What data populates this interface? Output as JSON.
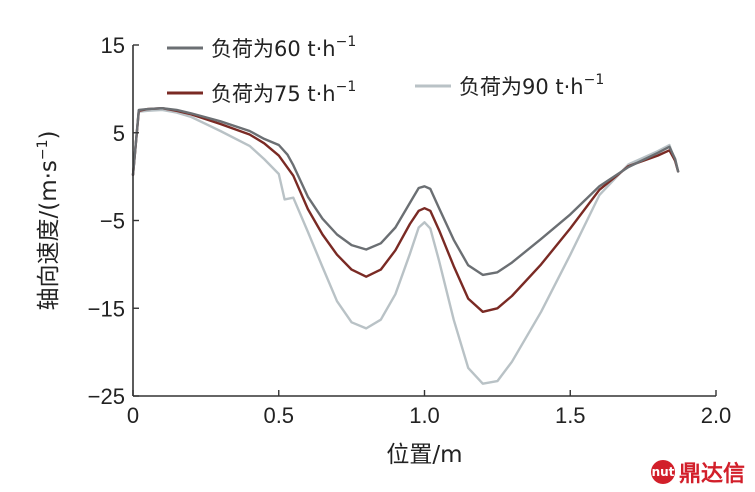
{
  "chart_data": {
    "type": "line",
    "xlabel": "位置/m",
    "ylabel": "轴向速度/(m·s",
    "ylabel_sup": "−1",
    "ylabel_close": ")",
    "xlim": [
      0,
      2.0
    ],
    "ylim": [
      -25,
      15
    ],
    "x_ticks": [
      0,
      0.5,
      1.0,
      1.5,
      2.0
    ],
    "x_tick_labels": [
      "0",
      "0.5",
      "1.0",
      "1.5",
      "2.0"
    ],
    "y_ticks": [
      15,
      5,
      -5,
      -15,
      -25
    ],
    "y_tick_labels": [
      "15",
      "5",
      "−5",
      "−15",
      "−25"
    ],
    "grid": false,
    "legend": "top",
    "series": [
      {
        "name": "负荷为60 t·h",
        "name_sup": "−1",
        "color": "#6b6f73",
        "points": [
          [
            0,
            0.2
          ],
          [
            0.02,
            7.6
          ],
          [
            0.05,
            7.7
          ],
          [
            0.1,
            7.8
          ],
          [
            0.15,
            7.6
          ],
          [
            0.2,
            7.2
          ],
          [
            0.3,
            6.3
          ],
          [
            0.4,
            5.2
          ],
          [
            0.45,
            4.3
          ],
          [
            0.5,
            3.6
          ],
          [
            0.53,
            2.5
          ],
          [
            0.55,
            1.3
          ],
          [
            0.6,
            -2.3
          ],
          [
            0.65,
            -4.8
          ],
          [
            0.7,
            -6.6
          ],
          [
            0.75,
            -7.8
          ],
          [
            0.8,
            -8.3
          ],
          [
            0.85,
            -7.6
          ],
          [
            0.9,
            -5.8
          ],
          [
            0.95,
            -3.0
          ],
          [
            0.98,
            -1.3
          ],
          [
            1.0,
            -1.1
          ],
          [
            1.02,
            -1.4
          ],
          [
            1.05,
            -3.6
          ],
          [
            1.1,
            -7.2
          ],
          [
            1.15,
            -10.1
          ],
          [
            1.2,
            -11.2
          ],
          [
            1.25,
            -10.9
          ],
          [
            1.3,
            -9.8
          ],
          [
            1.4,
            -7.1
          ],
          [
            1.5,
            -4.3
          ],
          [
            1.6,
            -1.1
          ],
          [
            1.7,
            1.1
          ],
          [
            1.8,
            2.7
          ],
          [
            1.84,
            3.4
          ],
          [
            1.86,
            2.0
          ],
          [
            1.87,
            0.6
          ]
        ]
      },
      {
        "name": "负荷为75 t·h",
        "name_sup": "−1",
        "color": "#7a2a24",
        "points": [
          [
            0,
            0.2
          ],
          [
            0.02,
            7.5
          ],
          [
            0.05,
            7.7
          ],
          [
            0.1,
            7.8
          ],
          [
            0.15,
            7.5
          ],
          [
            0.2,
            7.1
          ],
          [
            0.3,
            6.0
          ],
          [
            0.4,
            4.8
          ],
          [
            0.45,
            3.8
          ],
          [
            0.5,
            2.4
          ],
          [
            0.55,
            0.1
          ],
          [
            0.6,
            -3.7
          ],
          [
            0.65,
            -6.6
          ],
          [
            0.7,
            -8.9
          ],
          [
            0.75,
            -10.6
          ],
          [
            0.8,
            -11.4
          ],
          [
            0.85,
            -10.6
          ],
          [
            0.9,
            -8.4
          ],
          [
            0.95,
            -5.4
          ],
          [
            0.98,
            -3.9
          ],
          [
            1.0,
            -3.6
          ],
          [
            1.02,
            -3.9
          ],
          [
            1.05,
            -6.1
          ],
          [
            1.1,
            -10.2
          ],
          [
            1.15,
            -13.9
          ],
          [
            1.2,
            -15.4
          ],
          [
            1.25,
            -15.0
          ],
          [
            1.3,
            -13.6
          ],
          [
            1.4,
            -10.0
          ],
          [
            1.5,
            -5.9
          ],
          [
            1.6,
            -1.5
          ],
          [
            1.7,
            1.2
          ],
          [
            1.8,
            2.4
          ],
          [
            1.84,
            3.0
          ],
          [
            1.86,
            1.8
          ],
          [
            1.87,
            0.6
          ]
        ]
      },
      {
        "name": "负荷为90 t·h",
        "name_sup": "−1",
        "color": "#b9c2c6",
        "points": [
          [
            0,
            0.2
          ],
          [
            0.02,
            7.4
          ],
          [
            0.05,
            7.5
          ],
          [
            0.1,
            7.6
          ],
          [
            0.15,
            7.3
          ],
          [
            0.2,
            6.8
          ],
          [
            0.3,
            5.2
          ],
          [
            0.4,
            3.5
          ],
          [
            0.45,
            2.0
          ],
          [
            0.5,
            0.3
          ],
          [
            0.52,
            -2.6
          ],
          [
            0.55,
            -2.4
          ],
          [
            0.6,
            -6.3
          ],
          [
            0.65,
            -10.3
          ],
          [
            0.7,
            -14.2
          ],
          [
            0.75,
            -16.6
          ],
          [
            0.8,
            -17.3
          ],
          [
            0.85,
            -16.3
          ],
          [
            0.9,
            -13.4
          ],
          [
            0.95,
            -8.8
          ],
          [
            0.98,
            -5.8
          ],
          [
            1.0,
            -5.2
          ],
          [
            1.02,
            -5.9
          ],
          [
            1.05,
            -9.6
          ],
          [
            1.1,
            -16.3
          ],
          [
            1.15,
            -21.8
          ],
          [
            1.2,
            -23.6
          ],
          [
            1.25,
            -23.3
          ],
          [
            1.3,
            -21.1
          ],
          [
            1.4,
            -15.4
          ],
          [
            1.5,
            -8.9
          ],
          [
            1.6,
            -2.1
          ],
          [
            1.7,
            1.4
          ],
          [
            1.8,
            2.9
          ],
          [
            1.84,
            3.6
          ],
          [
            1.86,
            1.7
          ],
          [
            1.87,
            0.6
          ]
        ]
      }
    ]
  },
  "watermark": {
    "icon": "nut-logo-icon",
    "icon_text": "nut",
    "text": "鼎达信"
  }
}
